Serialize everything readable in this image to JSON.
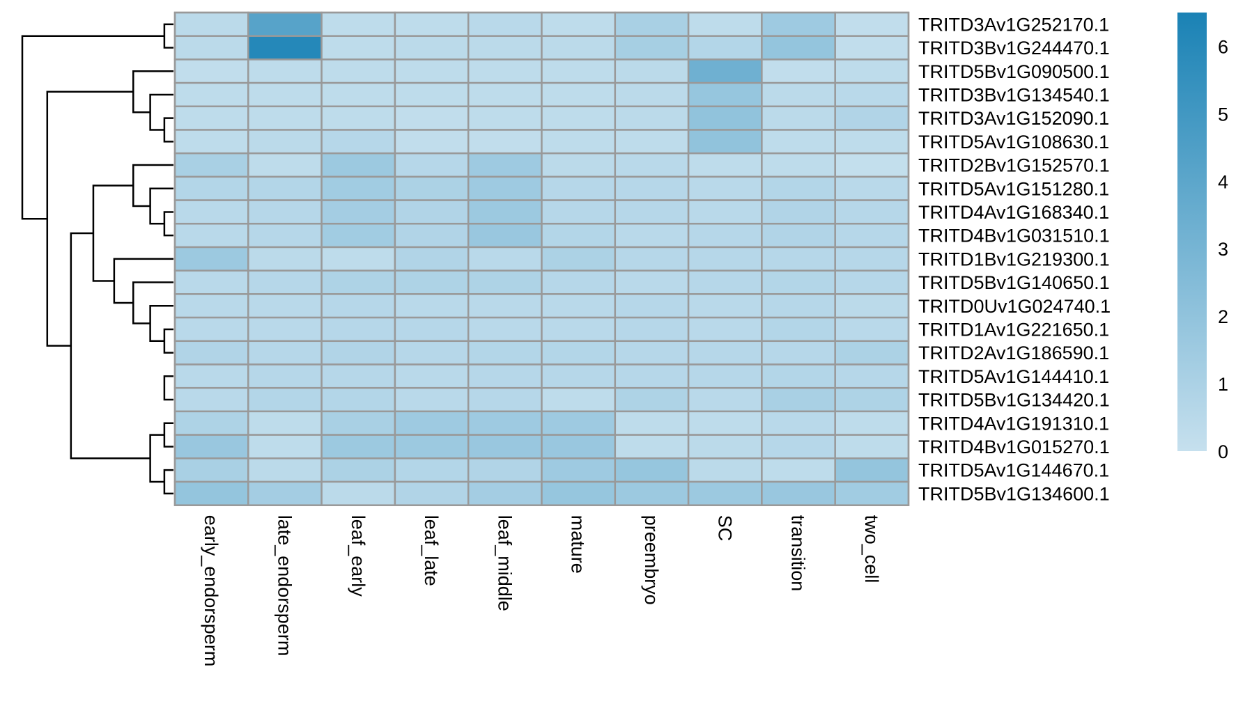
{
  "chart_data": {
    "type": "heatmap",
    "title": "",
    "xlabel": "",
    "ylabel": "",
    "columns": [
      "early_endorsperm",
      "late_endorsperm",
      "leaf_early",
      "leaf_late",
      "leaf_middle",
      "mature",
      "preembryo",
      "SC",
      "transition",
      "two_cell"
    ],
    "rows": [
      "TRITD3Av1G252170.1",
      "TRITD3Bv1G244470.1",
      "TRITD5Bv1G090500.1",
      "TRITD3Bv1G134540.1",
      "TRITD3Av1G152090.1",
      "TRITD5Av1G108630.1",
      "TRITD2Bv1G152570.1",
      "TRITD5Av1G151280.1",
      "TRITD4Av1G168340.1",
      "TRITD4Bv1G031510.1",
      "TRITD1Bv1G219300.1",
      "TRITD5Bv1G140650.1",
      "TRITD0Uv1G024740.1",
      "TRITD1Av1G221650.1",
      "TRITD2Av1G186590.1",
      "TRITD5Av1G144410.1",
      "TRITD5Bv1G134420.1",
      "TRITD4Av1G191310.1",
      "TRITD4Bv1G015270.1",
      "TRITD5Av1G144670.1",
      "TRITD5Bv1G134600.1"
    ],
    "values": [
      [
        0.4,
        4.2,
        0.3,
        0.3,
        0.5,
        0.3,
        1.1,
        0.3,
        1.5,
        0.2
      ],
      [
        0.4,
        6.1,
        0.3,
        0.4,
        0.4,
        0.4,
        1.2,
        0.7,
        1.9,
        0.2
      ],
      [
        0.2,
        0.3,
        0.3,
        0.3,
        0.3,
        0.3,
        0.4,
        3.3,
        0.2,
        0.3
      ],
      [
        0.3,
        0.3,
        0.3,
        0.3,
        0.3,
        0.3,
        0.4,
        1.8,
        0.4,
        0.5
      ],
      [
        0.3,
        0.3,
        0.3,
        0.2,
        0.3,
        0.3,
        0.4,
        2.0,
        0.4,
        0.8
      ],
      [
        0.3,
        0.4,
        0.6,
        0.2,
        0.2,
        0.3,
        0.3,
        2.0,
        0.3,
        0.3
      ],
      [
        1.1,
        0.3,
        1.6,
        0.6,
        1.5,
        0.4,
        0.5,
        0.3,
        0.3,
        0.1
      ],
      [
        0.7,
        0.7,
        1.4,
        1.0,
        1.5,
        0.6,
        0.6,
        0.5,
        0.7,
        0.5
      ],
      [
        0.5,
        0.6,
        1.3,
        0.8,
        1.6,
        0.6,
        0.6,
        0.5,
        0.8,
        0.6
      ],
      [
        0.5,
        0.6,
        1.4,
        0.8,
        1.7,
        0.7,
        0.5,
        0.6,
        0.8,
        0.6
      ],
      [
        1.6,
        0.4,
        0.3,
        0.8,
        0.5,
        1.0,
        0.6,
        0.6,
        0.6,
        0.6
      ],
      [
        0.5,
        0.6,
        0.9,
        0.9,
        0.9,
        0.6,
        0.5,
        0.6,
        0.7,
        0.6
      ],
      [
        0.5,
        0.5,
        0.6,
        0.5,
        0.5,
        0.5,
        0.6,
        0.5,
        0.6,
        0.4
      ],
      [
        0.5,
        0.5,
        0.6,
        0.6,
        0.5,
        0.5,
        0.6,
        0.5,
        0.7,
        0.5
      ],
      [
        0.8,
        0.6,
        0.8,
        0.6,
        0.7,
        0.7,
        0.6,
        0.6,
        0.6,
        1.0
      ],
      [
        0.5,
        0.6,
        0.6,
        0.5,
        0.6,
        0.6,
        0.6,
        0.6,
        0.7,
        0.6
      ],
      [
        0.5,
        0.7,
        0.7,
        0.5,
        0.6,
        0.3,
        0.9,
        0.5,
        1.1,
        0.9
      ],
      [
        0.9,
        0.3,
        1.1,
        1.5,
        1.5,
        1.5,
        0.3,
        0.3,
        0.5,
        0.3
      ],
      [
        1.7,
        0.3,
        1.6,
        1.6,
        1.7,
        1.7,
        0.3,
        0.4,
        0.6,
        0.3
      ],
      [
        1.1,
        0.4,
        1.0,
        0.7,
        0.8,
        1.5,
        1.8,
        0.4,
        0.3,
        1.9
      ],
      [
        1.9,
        1.3,
        0.4,
        0.8,
        1.3,
        1.8,
        1.6,
        1.6,
        1.7,
        1.4
      ]
    ],
    "legend": {
      "placement": "right",
      "min": 0,
      "max": 6.5,
      "ticks": [
        "0",
        "1",
        "2",
        "3",
        "4",
        "5",
        "6"
      ],
      "color_low": "#c6e0ee",
      "color_high": "#1a82b5"
    },
    "row_dendrogram": {
      "placement": "left",
      "merges": [
        [
          0,
          1
        ],
        [
          4,
          5
        ],
        [
          3,
          "m1"
        ],
        [
          2,
          "m2"
        ],
        [
          8,
          9
        ],
        [
          7,
          "m4"
        ],
        [
          6,
          "m5"
        ],
        [
          13,
          14
        ],
        [
          15,
          16
        ],
        [
          12,
          "m7"
        ],
        [
          11,
          "m9"
        ],
        [
          10,
          "m10"
        ],
        [
          "m6",
          "m11"
        ],
        [
          17,
          18
        ],
        [
          19,
          20
        ],
        [
          "m13",
          "m14"
        ],
        [
          "m12",
          "m15"
        ],
        [
          "m3",
          "m16"
        ],
        [
          "m0",
          "m17"
        ]
      ]
    },
    "cell_border_color": "#999999",
    "grid": true
  }
}
